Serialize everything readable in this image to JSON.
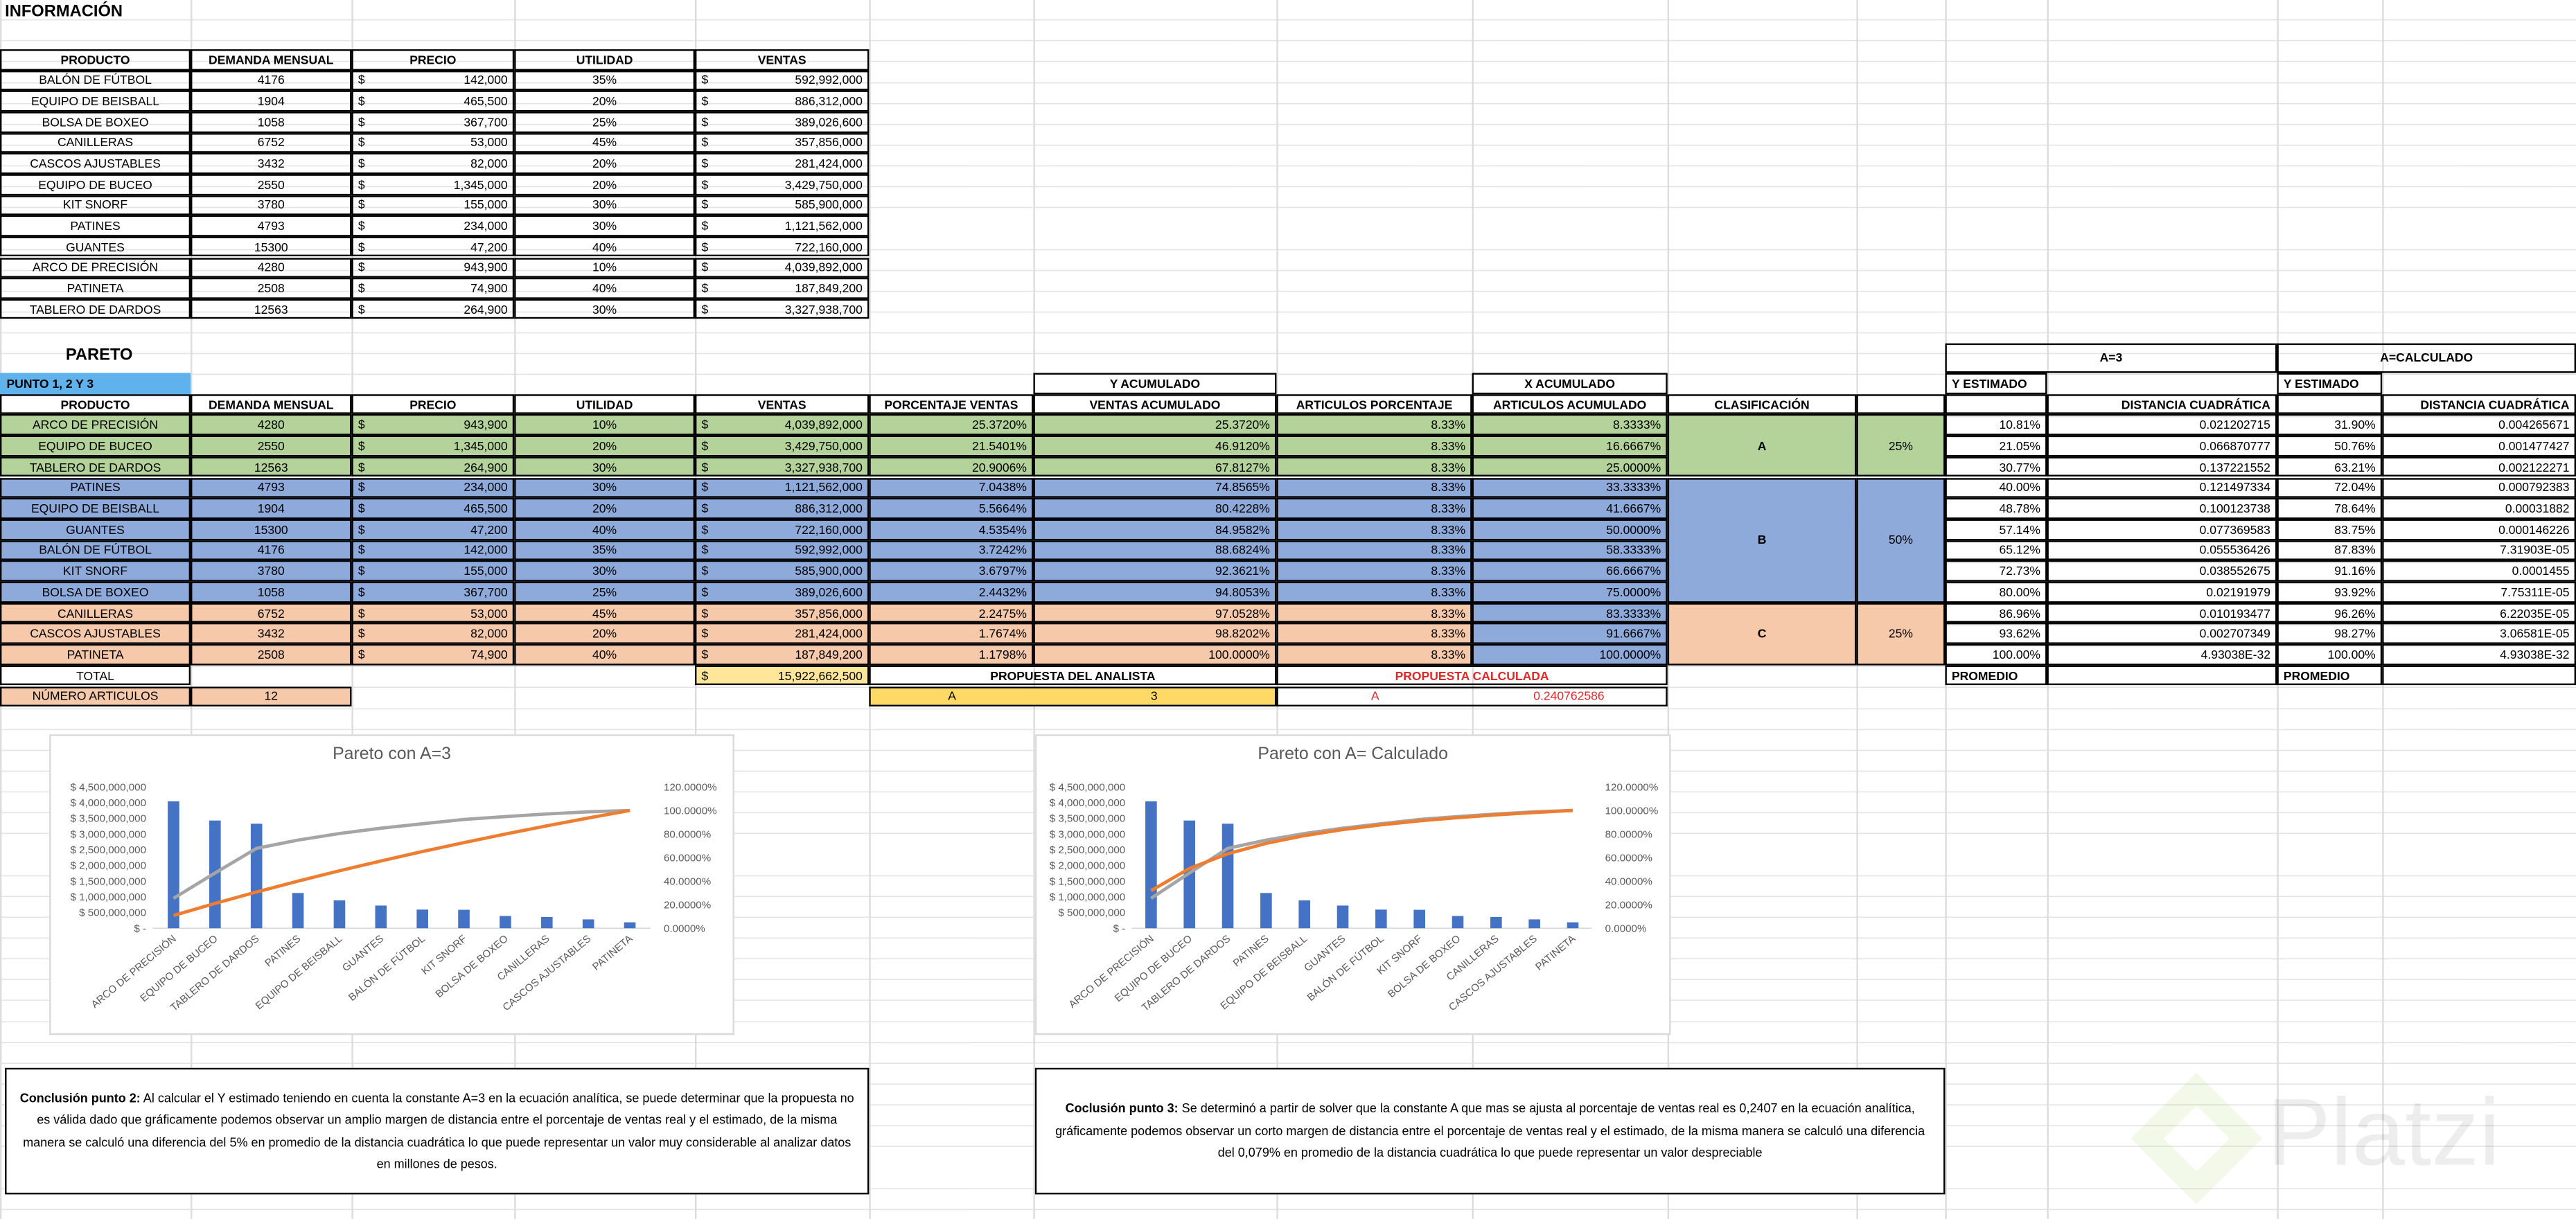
{
  "info": {
    "title": "INFORMACIÓN",
    "currency": "$",
    "headers": [
      "PRODUCTO",
      "DEMANDA MENSUAL",
      "PRECIO",
      "UTILIDAD",
      "VENTAS"
    ],
    "rows": [
      [
        "BALÓN DE FÚTBOL",
        "4176",
        "142,000",
        "35%",
        "592,992,000"
      ],
      [
        "EQUIPO DE BEISBALL",
        "1904",
        "465,500",
        "20%",
        "886,312,000"
      ],
      [
        "BOLSA DE BOXEO",
        "1058",
        "367,700",
        "25%",
        "389,026,600"
      ],
      [
        "CANILLERAS",
        "6752",
        "53,000",
        "45%",
        "357,856,000"
      ],
      [
        "CASCOS AJUSTABLES",
        "3432",
        "82,000",
        "20%",
        "281,424,000"
      ],
      [
        "EQUIPO DE BUCEO",
        "2550",
        "1,345,000",
        "20%",
        "3,429,750,000"
      ],
      [
        "KIT SNORF",
        "3780",
        "155,000",
        "30%",
        "585,900,000"
      ],
      [
        "PATINES",
        "4793",
        "234,000",
        "30%",
        "1,121,562,000"
      ],
      [
        "GUANTES",
        "15300",
        "47,200",
        "40%",
        "722,160,000"
      ],
      [
        "ARCO DE PRECISIÓN",
        "4280",
        "943,900",
        "10%",
        "4,039,892,000"
      ],
      [
        "PATINETA",
        "2508",
        "74,900",
        "40%",
        "187,849,200"
      ],
      [
        "TABLERO DE DARDOS",
        "12563",
        "264,900",
        "30%",
        "3,327,938,700"
      ]
    ]
  },
  "pareto": {
    "title": "PARETO",
    "tag": "PUNTO 1, 2 Y 3",
    "group_headers": {
      "y_acum": "Y ACUMULADO",
      "x_acum": "X ACUMULADO",
      "a3": "A=3",
      "a_calc": "A=CALCULADO"
    },
    "headers": [
      "PRODUCTO",
      "DEMANDA MENSUAL",
      "PRECIO",
      "UTILIDAD",
      "VENTAS",
      "PORCENTAJE VENTAS",
      "VENTAS ACUMULADO",
      "ARTICULOS PORCENTAJE",
      "ARTICULOS ACUMULADO",
      "CLASIFICACIÓN"
    ],
    "est_headers": [
      "Y ESTIMADO",
      "DISTANCIA CUADRÁTICA"
    ],
    "rows": [
      [
        "ARCO DE PRECISIÓN",
        "4280",
        "943,900",
        "10%",
        "4,039,892,000",
        "25.3720%",
        "25.3720%",
        "8.33%",
        "8.3333%",
        "10.81%",
        "0.021202715",
        "31.90%",
        "0.004265671"
      ],
      [
        "EQUIPO DE BUCEO",
        "2550",
        "1,345,000",
        "20%",
        "3,429,750,000",
        "21.5401%",
        "46.9120%",
        "8.33%",
        "16.6667%",
        "21.05%",
        "0.066870777",
        "50.76%",
        "0.001477427"
      ],
      [
        "TABLERO DE DARDOS",
        "12563",
        "264,900",
        "30%",
        "3,327,938,700",
        "20.9006%",
        "67.8127%",
        "8.33%",
        "25.0000%",
        "30.77%",
        "0.137221552",
        "63.21%",
        "0.002122271"
      ],
      [
        "PATINES",
        "4793",
        "234,000",
        "30%",
        "1,121,562,000",
        "7.0438%",
        "74.8565%",
        "8.33%",
        "33.3333%",
        "40.00%",
        "0.121497334",
        "72.04%",
        "0.000792383"
      ],
      [
        "EQUIPO DE BEISBALL",
        "1904",
        "465,500",
        "20%",
        "886,312,000",
        "5.5664%",
        "80.4228%",
        "8.33%",
        "41.6667%",
        "48.78%",
        "0.100123738",
        "78.64%",
        "0.00031882"
      ],
      [
        "GUANTES",
        "15300",
        "47,200",
        "40%",
        "722,160,000",
        "4.5354%",
        "84.9582%",
        "8.33%",
        "50.0000%",
        "57.14%",
        "0.077369583",
        "83.75%",
        "0.000146226"
      ],
      [
        "BALÓN DE FÚTBOL",
        "4176",
        "142,000",
        "35%",
        "592,992,000",
        "3.7242%",
        "88.6824%",
        "8.33%",
        "58.3333%",
        "65.12%",
        "0.055536426",
        "87.83%",
        "7.31903E-05"
      ],
      [
        "KIT SNORF",
        "3780",
        "155,000",
        "30%",
        "585,900,000",
        "3.6797%",
        "92.3621%",
        "8.33%",
        "66.6667%",
        "72.73%",
        "0.038552675",
        "91.16%",
        "0.0001455"
      ],
      [
        "BOLSA DE BOXEO",
        "1058",
        "367,700",
        "25%",
        "389,026,600",
        "2.4432%",
        "94.8053%",
        "8.33%",
        "75.0000%",
        "80.00%",
        "0.02191979",
        "93.92%",
        "7.75311E-05"
      ],
      [
        "CANILLERAS",
        "6752",
        "53,000",
        "45%",
        "357,856,000",
        "2.2475%",
        "97.0528%",
        "8.33%",
        "83.3333%",
        "86.96%",
        "0.010193477",
        "96.26%",
        "6.22035E-05"
      ],
      [
        "CASCOS AJUSTABLES",
        "3432",
        "82,000",
        "20%",
        "281,424,000",
        "1.7674%",
        "98.8202%",
        "8.33%",
        "91.6667%",
        "93.62%",
        "0.002707349",
        "98.27%",
        "3.06581E-05"
      ],
      [
        "PATINETA",
        "2508",
        "74,900",
        "40%",
        "187,849,200",
        "1.1798%",
        "100.0000%",
        "8.33%",
        "100.0000%",
        "100.00%",
        "4.93038E-32",
        "100.00%",
        "4.93038E-32"
      ]
    ],
    "classes": [
      {
        "label": "A",
        "share": "25%"
      },
      {
        "label": "B",
        "share": "50%"
      },
      {
        "label": "C",
        "share": "25%"
      }
    ],
    "total": {
      "label": "TOTAL",
      "ventas": "15,922,662,500"
    },
    "count": {
      "label": "NÚMERO ARTICULOS",
      "value": "12"
    },
    "analyst": {
      "label": "PROPUESTA DEL ANALISTA",
      "letter": "A",
      "value": "3"
    },
    "calculated": {
      "label": "PROPUESTA CALCULADA",
      "letter": "A",
      "value": "0.240762586"
    },
    "average_label": "PROMEDIO"
  },
  "chart_data": [
    {
      "type": "bar",
      "title": "Pareto con A=3",
      "categories": [
        "ARCO DE PRECISIÓN",
        "EQUIPO DE BUCEO",
        "TABLERO DE DARDOS",
        "PATINES",
        "EQUIPO DE BEISBALL",
        "GUANTES",
        "BALÓN DE FÚTBOL",
        "KIT SNORF",
        "BOLSA DE BOXEO",
        "CANILLERAS",
        "CASCOS AJUSTABLES",
        "PATINETA"
      ],
      "values": [
        4039892000,
        3429750000,
        3327938700,
        1121562000,
        886312000,
        722160000,
        592992000,
        585900000,
        389026600,
        357856000,
        281424000,
        187849200
      ],
      "color": "#4472c4",
      "ylim": [
        0,
        4500000000
      ],
      "yticks": [
        {
          "value": 0,
          "label": "$ -"
        },
        {
          "value": 500000000,
          "label": "$ 500,000,000"
        },
        {
          "value": 1000000000,
          "label": "$ 1,000,000,000"
        },
        {
          "value": 1500000000,
          "label": "$ 1,500,000,000"
        },
        {
          "value": 2000000000,
          "label": "$ 2,000,000,000"
        },
        {
          "value": 2500000000,
          "label": "$ 2,500,000,000"
        },
        {
          "value": 3000000000,
          "label": "$ 3,000,000,000"
        },
        {
          "value": 3500000000,
          "label": "$ 3,500,000,000"
        },
        {
          "value": 4000000000,
          "label": "$ 4,000,000,000"
        },
        {
          "value": 4500000000,
          "label": "$ 4,500,000,000"
        }
      ],
      "y2lim": [
        0,
        120
      ],
      "y2ticks": [
        {
          "value": 0,
          "label": "0.0000%"
        },
        {
          "value": 20,
          "label": "20.0000%"
        },
        {
          "value": 40,
          "label": "40.0000%"
        },
        {
          "value": 60,
          "label": "60.0000%"
        },
        {
          "value": 80,
          "label": "80.0000%"
        },
        {
          "value": 100,
          "label": "100.0000%"
        },
        {
          "value": 120,
          "label": "120.0000%"
        }
      ],
      "series": [
        {
          "color": "#a5a5a5",
          "axis": "y2",
          "values": [
            25.372,
            46.912,
            67.8127,
            74.8565,
            80.4228,
            84.9582,
            88.6824,
            92.3621,
            94.8053,
            97.0528,
            98.8202,
            100
          ]
        },
        {
          "color": "#ed7d31",
          "axis": "y2",
          "values": [
            10.81,
            21.05,
            30.77,
            40.0,
            48.78,
            57.14,
            65.12,
            72.73,
            80.0,
            86.96,
            93.62,
            100.0
          ]
        }
      ]
    },
    {
      "type": "bar",
      "title": "Pareto con A= Calculado",
      "categories": [
        "ARCO DE PRECISIÓN",
        "EQUIPO DE BUCEO",
        "TABLERO DE DARDOS",
        "PATINES",
        "EQUIPO DE BEISBALL",
        "GUANTES",
        "BALÓN DE FÚTBOL",
        "KIT SNORF",
        "BOLSA DE BOXEO",
        "CANILLERAS",
        "CASCOS AJUSTABLES",
        "PATINETA"
      ],
      "values": [
        4039892000,
        3429750000,
        3327938700,
        1121562000,
        886312000,
        722160000,
        592992000,
        585900000,
        389026600,
        357856000,
        281424000,
        187849200
      ],
      "color": "#4472c4",
      "ylim": [
        0,
        4500000000
      ],
      "yticks": [
        {
          "value": 0,
          "label": "$ -"
        },
        {
          "value": 500000000,
          "label": "$ 500,000,000"
        },
        {
          "value": 1000000000,
          "label": "$ 1,000,000,000"
        },
        {
          "value": 1500000000,
          "label": "$ 1,500,000,000"
        },
        {
          "value": 2000000000,
          "label": "$ 2,000,000,000"
        },
        {
          "value": 2500000000,
          "label": "$ 2,500,000,000"
        },
        {
          "value": 3000000000,
          "label": "$ 3,000,000,000"
        },
        {
          "value": 3500000000,
          "label": "$ 3,500,000,000"
        },
        {
          "value": 4000000000,
          "label": "$ 4,000,000,000"
        },
        {
          "value": 4500000000,
          "label": "$ 4,500,000,000"
        }
      ],
      "y2lim": [
        0,
        120
      ],
      "y2ticks": [
        {
          "value": 0,
          "label": "0.0000%"
        },
        {
          "value": 20,
          "label": "20.0000%"
        },
        {
          "value": 40,
          "label": "40.0000%"
        },
        {
          "value": 60,
          "label": "60.0000%"
        },
        {
          "value": 80,
          "label": "80.0000%"
        },
        {
          "value": 100,
          "label": "100.0000%"
        },
        {
          "value": 120,
          "label": "120.0000%"
        }
      ],
      "series": [
        {
          "color": "#a5a5a5",
          "axis": "y2",
          "values": [
            25.372,
            46.912,
            67.8127,
            74.8565,
            80.4228,
            84.9582,
            88.6824,
            92.3621,
            94.8053,
            97.0528,
            98.8202,
            100
          ]
        },
        {
          "color": "#ed7d31",
          "axis": "y2",
          "values": [
            31.9,
            50.76,
            63.21,
            72.04,
            78.64,
            83.75,
            87.83,
            91.16,
            93.92,
            96.26,
            98.27,
            100.0
          ]
        }
      ]
    }
  ],
  "conclusions": [
    {
      "label": "Conclusión punto 2:",
      "text": "Al calcular el Y estimado teniendo en cuenta la constante A=3 en la ecuación analítica, se puede determinar que la propuesta no es válida dado que gráficamente podemos observar un amplio margen de distancia entre el porcentaje de ventas real y el estimado, de la misma manera se calculó una diferencia del 5% en promedio de la distancia cuadrática lo que puede representar un valor muy considerable al analizar datos en millones de pesos."
    },
    {
      "label": "Coclusión punto 3:",
      "text": "Se determinó a partir de solver que la constante A que mas se ajusta al porcentaje de ventas real es 0,2407 en la ecuación analítica, gráficamente podemos observar un corto margen de distancia entre el porcentaje de ventas real y el estimado, de la misma manera se calculó una diferencia del 0,079% en promedio de la distancia cuadrática lo que puede representar un valor despreciable"
    }
  ],
  "watermark": "Platzi"
}
